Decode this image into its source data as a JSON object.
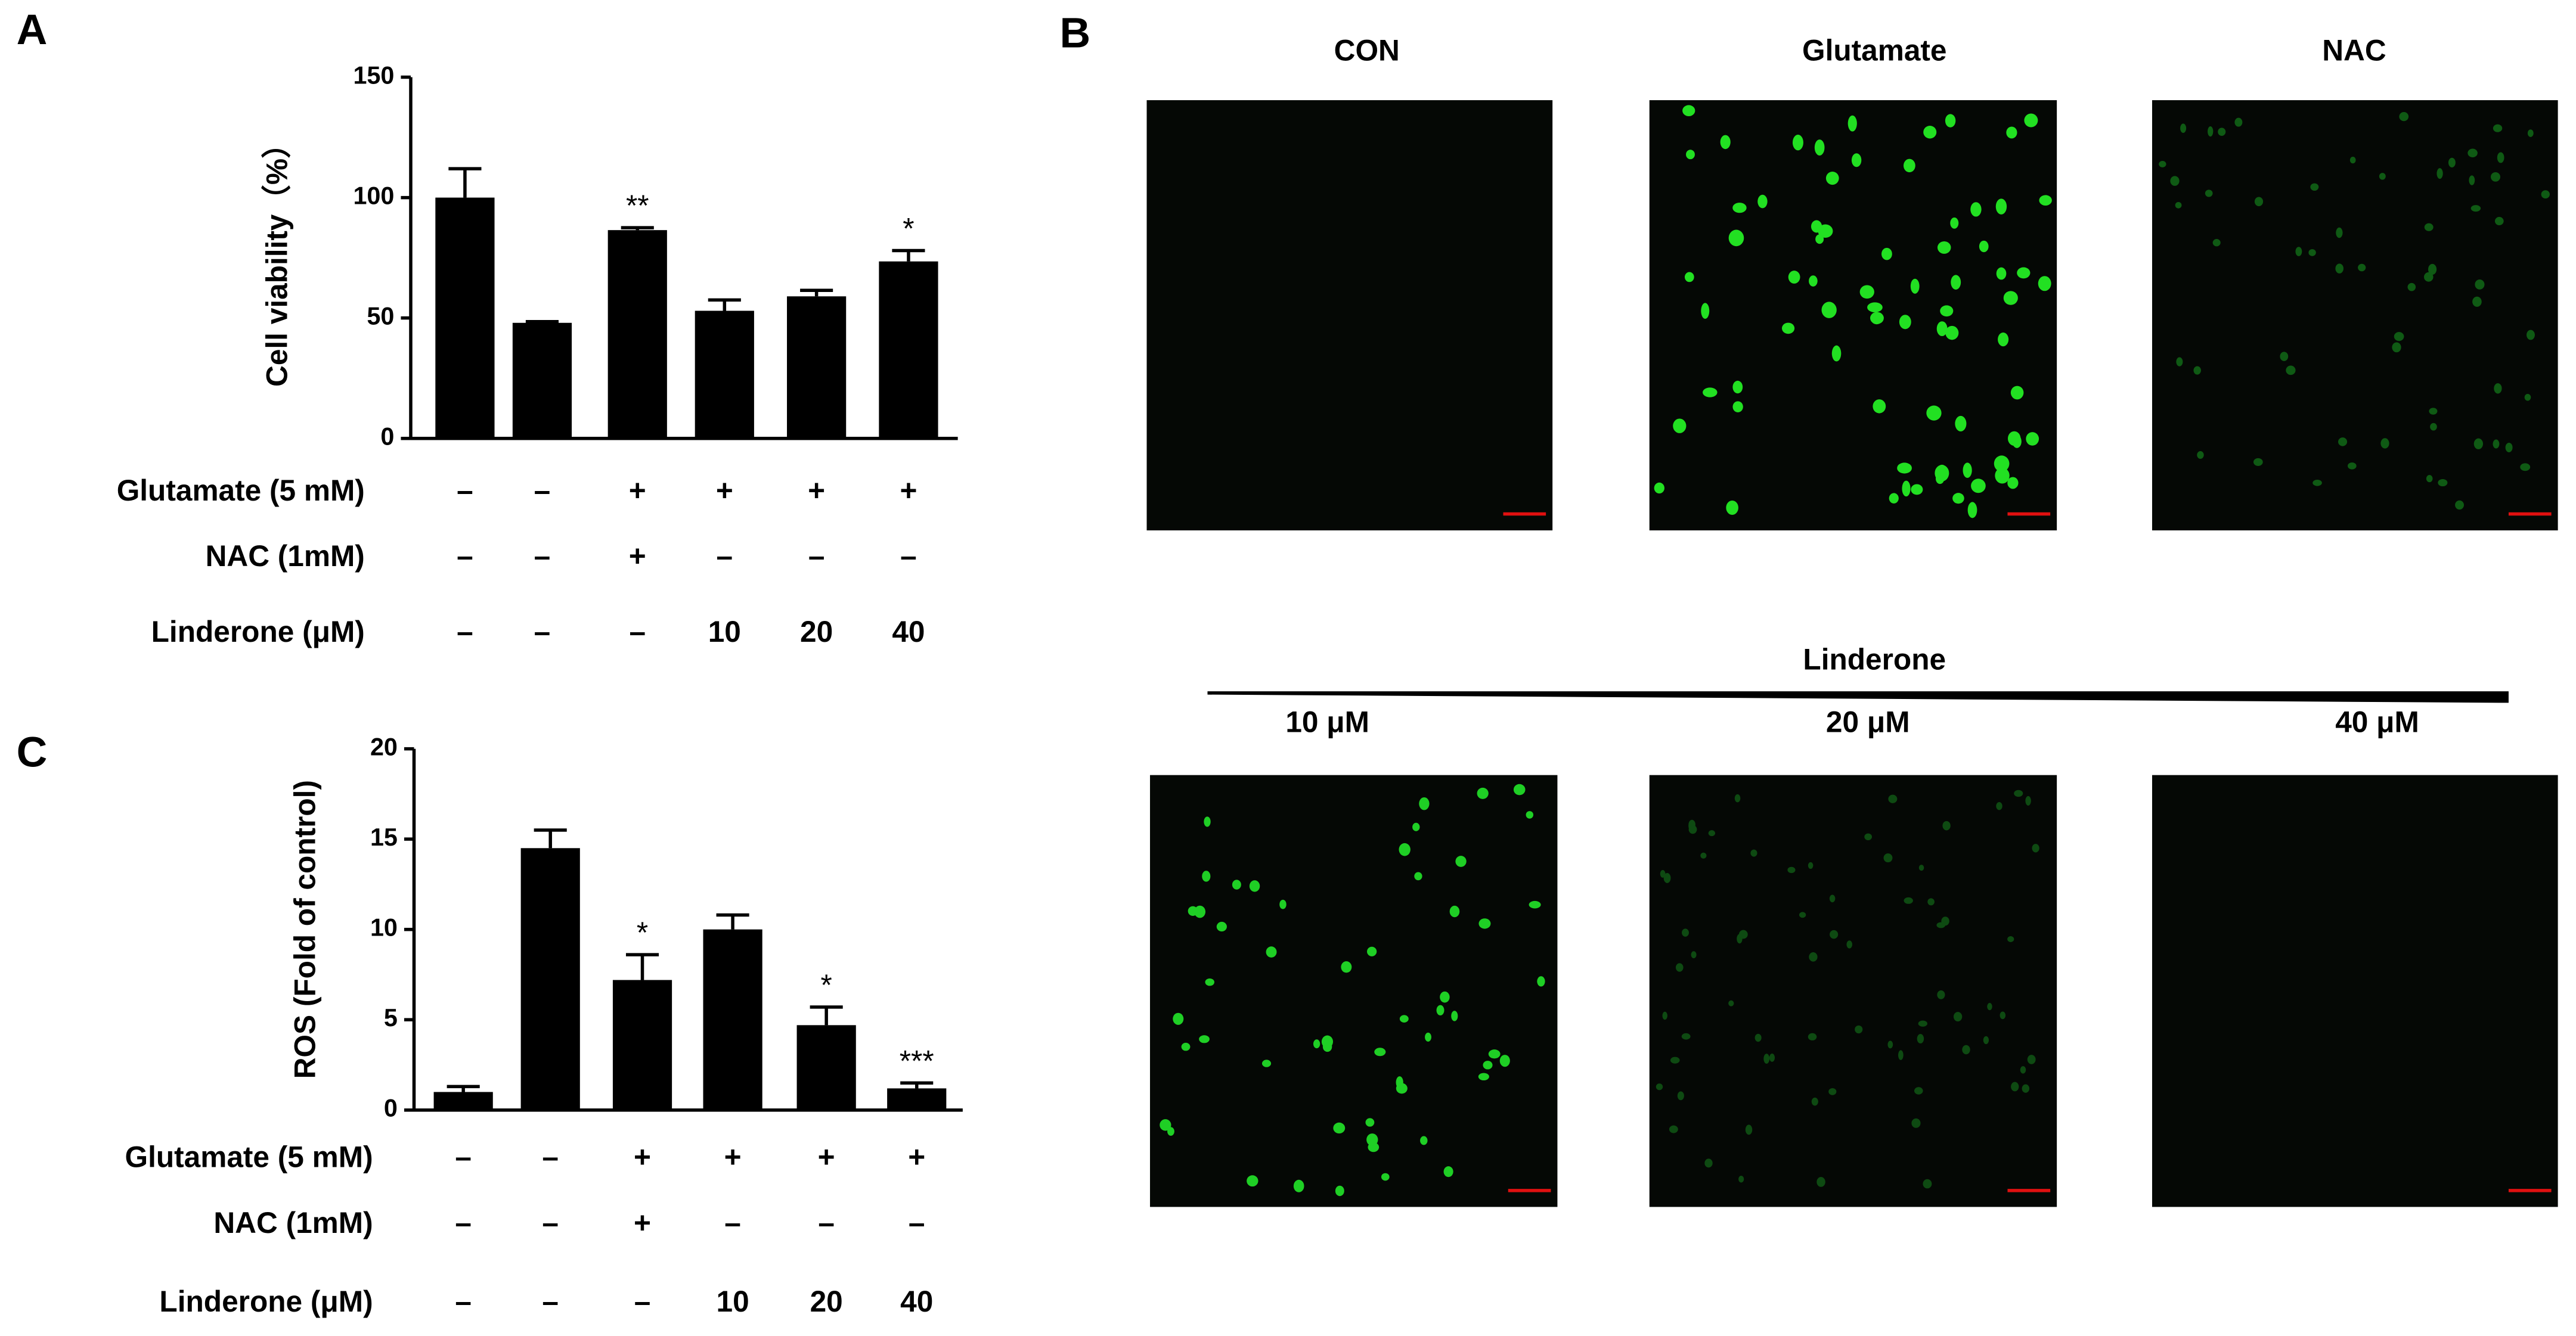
{
  "chart_data": [
    {
      "type": "bar",
      "panel_label": "A",
      "ylabel": "Cell viability（%）",
      "values": [
        100,
        48,
        86.5,
        53,
        59,
        73.5
      ],
      "errors": [
        12,
        0.5,
        1,
        4.5,
        2.5,
        4.5
      ],
      "significance": [
        null,
        null,
        "**",
        null,
        null,
        "*"
      ],
      "color": "#000000",
      "ylim": [
        0,
        150
      ],
      "yticks": [
        0,
        50,
        100,
        150
      ],
      "conditions": [
        {
          "label": "Glutamate (5 mM)",
          "values": [
            "–",
            "–",
            "+",
            "+",
            "+",
            "+"
          ]
        },
        {
          "label": "NAC (1mM)",
          "values": [
            "–",
            "–",
            "+",
            "–",
            "–",
            "–"
          ]
        },
        {
          "label": "Linderone (μM)",
          "values": [
            "–",
            "–",
            "–",
            "10",
            "20",
            "40"
          ]
        }
      ]
    },
    {
      "type": "bar",
      "panel_label": "C",
      "ylabel": "ROS (Fold of control)",
      "values": [
        1.0,
        14.5,
        7.2,
        10.0,
        4.7,
        1.2
      ],
      "errors": [
        0.3,
        1.0,
        1.4,
        0.8,
        1.0,
        0.3
      ],
      "significance": [
        null,
        null,
        "*",
        null,
        "*",
        "***"
      ],
      "color": "#000000",
      "ylim": [
        0,
        20
      ],
      "yticks": [
        0,
        5,
        10,
        15,
        20
      ],
      "conditions": [
        {
          "label": "Glutamate (5 mM)",
          "values": [
            "–",
            "–",
            "+",
            "+",
            "+",
            "+"
          ]
        },
        {
          "label": "NAC (1mM)",
          "values": [
            "–",
            "–",
            "+",
            "–",
            "–",
            "–"
          ]
        },
        {
          "label": "Linderone (μM)",
          "values": [
            "–",
            "–",
            "–",
            "10",
            "20",
            "40"
          ]
        }
      ]
    }
  ],
  "micrographs": {
    "panel_label": "B",
    "top_titles": [
      "CON",
      "Glutamate",
      "NAC"
    ],
    "group_label": "Linderone",
    "bottom_titles": [
      "10 μM",
      "20 μM",
      "40 μM"
    ]
  }
}
